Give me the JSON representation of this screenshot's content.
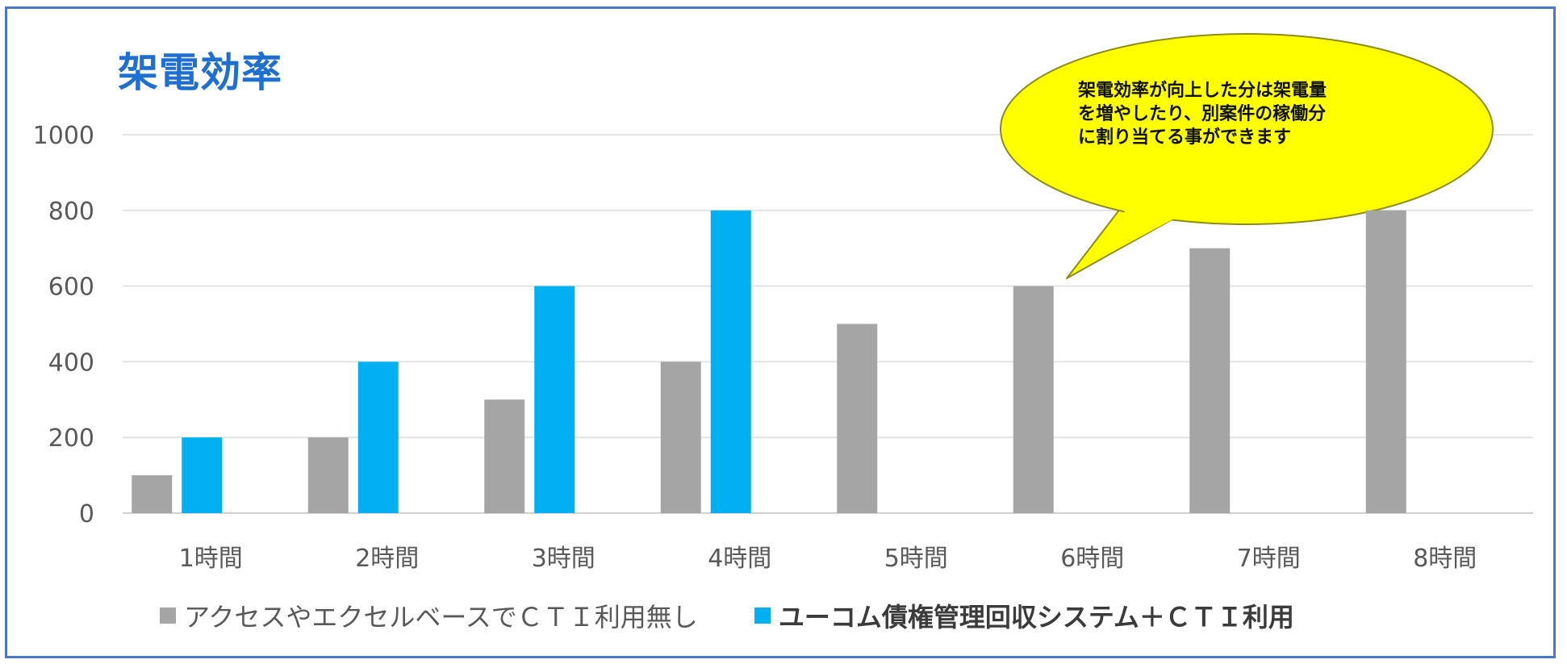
{
  "chart_data": {
    "type": "bar",
    "title": "架電効率",
    "categories": [
      "1時間",
      "2時間",
      "3時間",
      "4時間",
      "5時間",
      "6時間",
      "7時間",
      "8時間"
    ],
    "series": [
      {
        "name": "アクセスやエクセルベースでＣＴＩ利用無し",
        "color": "#a5a5a5",
        "values": [
          100,
          200,
          300,
          400,
          500,
          600,
          700,
          800
        ]
      },
      {
        "name": "ユーコム債権管理回収システム＋ＣＴＩ利用",
        "color": "#00b0f0",
        "values": [
          200,
          400,
          600,
          800,
          null,
          null,
          null,
          null
        ]
      }
    ],
    "ylim": [
      0,
      1000
    ],
    "yticks": [
      0,
      200,
      400,
      600,
      800,
      1000
    ],
    "grid": true,
    "legend": "bottom",
    "annotation": {
      "lines": [
        "架電効率が向上した分は架電量",
        "を増やしたり、別案件の稼働分",
        "に割り当てる事ができます"
      ],
      "fill": "#ffff00"
    }
  }
}
